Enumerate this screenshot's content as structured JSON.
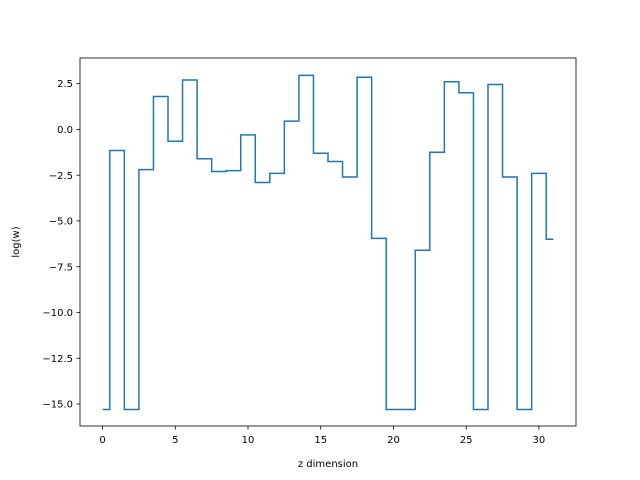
{
  "chart_data": {
    "type": "line",
    "drawstyle": "steps-mid",
    "title": "",
    "xlabel": "z dimension",
    "ylabel": "log(w)",
    "xlim": [
      -1.55,
      32.55
    ],
    "ylim": [
      -16.2,
      3.9
    ],
    "grid": false,
    "legend": "none",
    "xticks": [
      0,
      5,
      10,
      15,
      20,
      25,
      30
    ],
    "xtick_labels": [
      "0",
      "5",
      "10",
      "15",
      "20",
      "25",
      "30"
    ],
    "yticks": [
      2.5,
      0.0,
      -2.5,
      -5.0,
      -7.5,
      -10.0,
      -12.5,
      -15.0
    ],
    "ytick_labels": [
      "2.5",
      "0.0",
      "−2.5",
      "−5.0",
      "−7.5",
      "−10.0",
      "−12.5",
      "−15.0"
    ],
    "series": [
      {
        "color": "#1f77b4",
        "x": [
          0,
          1,
          2,
          3,
          4,
          5,
          6,
          7,
          8,
          9,
          10,
          11,
          12,
          13,
          14,
          15,
          16,
          17,
          18,
          19,
          20,
          21,
          22,
          23,
          24,
          25,
          26,
          27,
          28,
          29,
          30,
          31
        ],
        "y": [
          -15.3,
          -1.15,
          -15.3,
          -2.2,
          1.8,
          -0.65,
          2.7,
          -1.6,
          -2.3,
          -2.25,
          -0.3,
          -2.9,
          -2.4,
          0.45,
          2.95,
          -1.3,
          -1.75,
          -2.6,
          2.85,
          -5.95,
          -15.3,
          -15.3,
          -6.6,
          -1.25,
          2.6,
          2.0,
          -15.3,
          2.45,
          -2.6,
          -15.3,
          -2.4,
          -6.0
        ]
      }
    ]
  }
}
